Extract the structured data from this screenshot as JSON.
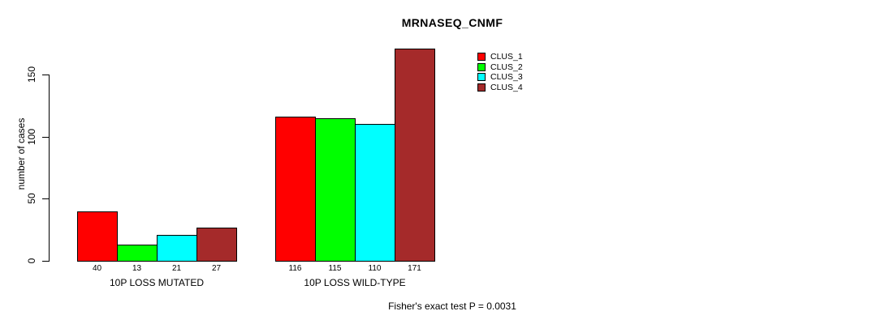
{
  "chart_data": {
    "type": "bar",
    "title": "MRNASEQ_CNMF",
    "ylabel": "number of cases",
    "xlabel": "",
    "annotation": "Fisher's exact test P = 0.0031",
    "categories": [
      "10P LOSS MUTATED",
      "10P LOSS WILD-TYPE"
    ],
    "series": [
      {
        "name": "CLUS_1",
        "color": "#FF0000",
        "values": [
          40,
          116
        ]
      },
      {
        "name": "CLUS_2",
        "color": "#00FF00",
        "values": [
          13,
          115
        ]
      },
      {
        "name": "CLUS_3",
        "color": "#00FFFF",
        "values": [
          21,
          110
        ]
      },
      {
        "name": "CLUS_4",
        "color": "#A52A2A",
        "values": [
          27,
          171
        ]
      }
    ],
    "bar_value_labels": [
      [
        40,
        13,
        21,
        27
      ],
      [
        116,
        115,
        110,
        171
      ]
    ],
    "yticks": [
      0,
      50,
      100,
      150
    ],
    "ylim": [
      0,
      150
    ],
    "grid": false,
    "legend_position": "top-right",
    "axis_color": "#000000",
    "background_color": "#FFFFFF"
  }
}
